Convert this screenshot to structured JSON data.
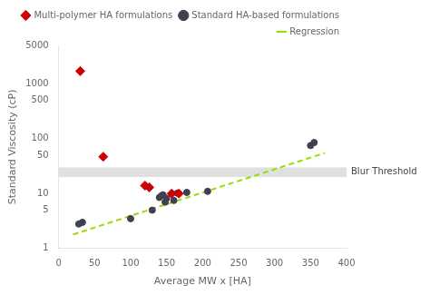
{
  "chart_data": {
    "type": "scatter",
    "xlabel": "Average MW x [HA]",
    "ylabel": "Standard Viscosity (cP)",
    "xlim": [
      0,
      400
    ],
    "xticks": [
      0,
      50,
      100,
      150,
      200,
      250,
      300,
      350,
      400
    ],
    "ylim": [
      1,
      5000
    ],
    "yticks": [
      1,
      5,
      10,
      50,
      100,
      500,
      1000,
      5000
    ],
    "log": "y",
    "grid": false,
    "legend": "upper right",
    "bands": [
      {
        "label": "Blur Threshold",
        "from": 20,
        "to": 30,
        "color": "#e0e0e0"
      }
    ],
    "series": [
      {
        "name": "Standard HA-based formulations",
        "color": "#404050",
        "marker": "circle",
        "x": [
          28,
          33,
          100,
          130,
          140,
          143,
          145,
          148,
          150,
          160,
          165,
          178,
          207,
          350,
          355
        ],
        "values": [
          2.8,
          3.0,
          3.5,
          5.0,
          8.5,
          9.2,
          9.5,
          7.0,
          8.2,
          7.5,
          10.2,
          10.5,
          11.0,
          75.0,
          85.0
        ]
      },
      {
        "name": "Multi-polymer HA formulations",
        "color": "#cc0000",
        "marker": "diamond",
        "x": [
          30,
          62,
          120,
          126,
          157,
          167
        ],
        "values": [
          1700,
          47,
          14,
          13,
          10,
          10
        ]
      },
      {
        "name": "Regression",
        "color": "#99dd00",
        "type": "line",
        "line_style": "dashed",
        "x": [
          20,
          370
        ],
        "values": [
          1.8,
          55
        ]
      }
    ]
  }
}
